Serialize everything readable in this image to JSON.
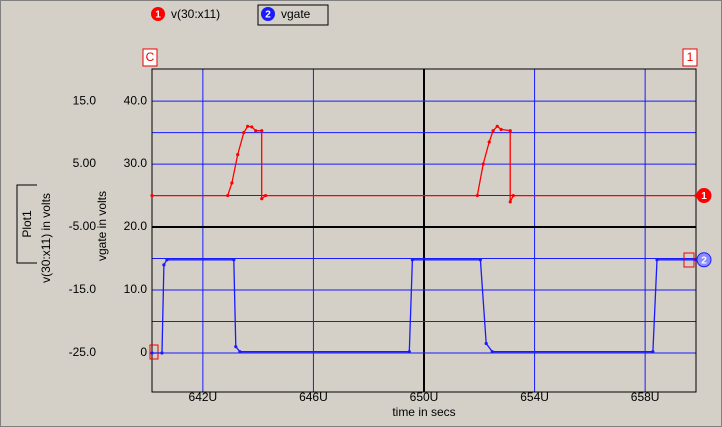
{
  "chart_data": {
    "type": "line",
    "plot_label": "Plot1",
    "xlabel": "time in secs",
    "ylabel": "v(30:x11) in volts",
    "y2label": "vgate in volts",
    "corner_labels": [
      "C",
      "1"
    ],
    "xlim": [
      640.16,
      659.84
    ],
    "xticks": [
      {
        "value": 642,
        "label": "642U"
      },
      {
        "value": 646,
        "label": "646U"
      },
      {
        "value": 650,
        "label": "650U"
      },
      {
        "value": 654,
        "label": "654U"
      },
      {
        "value": 658,
        "label": "658U"
      }
    ],
    "ylim": [
      -31.2,
      20.1
    ],
    "yticks": [
      {
        "value": 15,
        "label": "15.0"
      },
      {
        "value": 5,
        "label": "5.00"
      },
      {
        "value": -5,
        "label": "-5.00"
      },
      {
        "value": -15,
        "label": "-15.0"
      },
      {
        "value": -25,
        "label": "-25.0"
      }
    ],
    "yminor": [
      10,
      0,
      -10,
      -20
    ],
    "y2lim": [
      -6.2,
      45.1
    ],
    "y2ticks": [
      {
        "value": 40,
        "label": "40.0"
      },
      {
        "value": 30,
        "label": "30.0"
      },
      {
        "value": 20,
        "label": "20.0"
      },
      {
        "value": 10,
        "label": "10.0"
      },
      0
    ],
    "grid": true,
    "series": [
      {
        "name": "v(30:x11)",
        "marker": "1",
        "color": "#ff0000",
        "x": [
          640.16,
          642.9,
          643.05,
          643.26,
          643.48,
          643.62,
          643.77,
          643.91,
          644.13,
          644.13,
          644.27,
          651.93,
          652.14,
          652.36,
          652.5,
          652.65,
          652.79,
          653.12,
          653.12,
          653.23,
          659.84
        ],
        "values": [
          0,
          0,
          2,
          6.5,
          10,
          11,
          10.9,
          10.3,
          10.3,
          -0.5,
          0,
          0,
          5,
          8.5,
          10.3,
          11,
          10.5,
          10.3,
          -1,
          0,
          0
        ]
      },
      {
        "name": "vgate",
        "marker": "2",
        "color": "#1a1aff",
        "axis": "y2",
        "x": [
          640.16,
          640.52,
          640.59,
          640.7,
          643.12,
          643.19,
          643.34,
          649.47,
          649.58,
          652.04,
          652.25,
          652.47,
          658.28,
          658.43,
          659.84
        ],
        "values": [
          0,
          0,
          14,
          14.8,
          14.8,
          1,
          0.2,
          0.2,
          14.8,
          14.8,
          1.5,
          0.2,
          0.2,
          14.8,
          14.8
        ]
      }
    ]
  }
}
